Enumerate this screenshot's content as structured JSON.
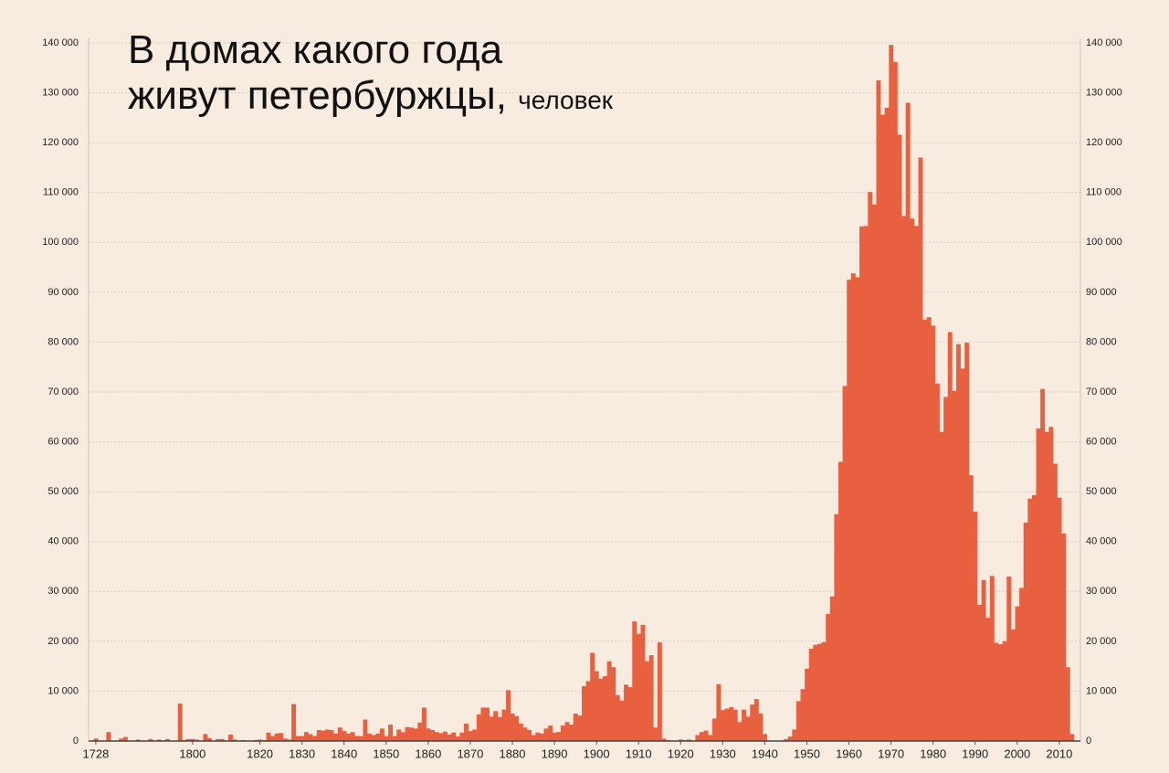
{
  "chart_data": {
    "type": "bar",
    "title": [
      "В домах какого года",
      "живут петербуржцы,"
    ],
    "subtitle": "человек",
    "color": "#e8603f",
    "grid": true,
    "categories": [
      null,
      "1728",
      null,
      null,
      null,
      null,
      null,
      null,
      null,
      null,
      null,
      null,
      null,
      null,
      null,
      null,
      null,
      null,
      null,
      null,
      null,
      null,
      null,
      null,
      "1800",
      null,
      null,
      null,
      null,
      null,
      null,
      null,
      null,
      null,
      null,
      null,
      null,
      null,
      null,
      null,
      "1820",
      null,
      null,
      null,
      null,
      null,
      null,
      null,
      null,
      null,
      "1830",
      null,
      null,
      null,
      null,
      null,
      null,
      null,
      null,
      null,
      "1840",
      null,
      null,
      null,
      null,
      null,
      null,
      null,
      null,
      null,
      "1850",
      null,
      null,
      null,
      null,
      null,
      null,
      null,
      null,
      null,
      "1860",
      null,
      null,
      null,
      null,
      null,
      null,
      null,
      null,
      null,
      "1870",
      null,
      null,
      null,
      null,
      null,
      null,
      null,
      null,
      null,
      "1880",
      null,
      null,
      null,
      null,
      null,
      null,
      null,
      null,
      null,
      "1890",
      null,
      null,
      null,
      null,
      null,
      null,
      null,
      null,
      null,
      "1900",
      null,
      null,
      null,
      null,
      null,
      null,
      null,
      null,
      null,
      "1910",
      null,
      null,
      null,
      null,
      null,
      null,
      null,
      null,
      null,
      "1920",
      null,
      null,
      null,
      null,
      null,
      null,
      null,
      null,
      null,
      "1930",
      null,
      null,
      null,
      null,
      null,
      null,
      null,
      null,
      null,
      "1940",
      null,
      null,
      null,
      null,
      null,
      null,
      null,
      null,
      null,
      "1950",
      null,
      null,
      null,
      null,
      null,
      null,
      null,
      null,
      null,
      "1960",
      null,
      null,
      null,
      null,
      null,
      null,
      null,
      null,
      null,
      "1970",
      null,
      null,
      null,
      null,
      null,
      null,
      null,
      null,
      null,
      "1980",
      null,
      null,
      null,
      null,
      null,
      null,
      null,
      null,
      null,
      "1990",
      null,
      null,
      null,
      null,
      null,
      null,
      null,
      null,
      null,
      "2000",
      null,
      null,
      null,
      null,
      null,
      null,
      null,
      null,
      null,
      "2010",
      null,
      null,
      null
    ],
    "values": [
      0,
      500,
      0,
      0,
      1800,
      0,
      0,
      500,
      800,
      0,
      0,
      300,
      0,
      0,
      400,
      0,
      300,
      0,
      400,
      0,
      0,
      7500,
      200,
      400,
      400,
      300,
      0,
      1400,
      600,
      0,
      400,
      400,
      0,
      1300,
      300,
      0,
      200,
      0,
      0,
      200,
      300,
      200,
      1700,
      1000,
      1500,
      1600,
      500,
      300,
      7400,
      1000,
      1000,
      1800,
      1400,
      1000,
      2200,
      2100,
      2300,
      2200,
      1500,
      2700,
      2000,
      1500,
      1800,
      1000,
      1000,
      4300,
      1500,
      1200,
      1500,
      2500,
      1000,
      3300,
      1000,
      2300,
      1800,
      2800,
      2700,
      2500,
      3700,
      6700,
      2500,
      2200,
      1800,
      1600,
      1900,
      1300,
      1700,
      900,
      1700,
      3500,
      2000,
      2300,
      5300,
      6700,
      6700,
      4900,
      6000,
      4800,
      6300,
      10200,
      5500,
      5000,
      3500,
      2700,
      2200,
      1200,
      1700,
      1500,
      2500,
      3100,
      1700,
      1800,
      3100,
      3800,
      3300,
      5500,
      5100,
      11000,
      12000,
      17700,
      14000,
      12500,
      13000,
      16000,
      14800,
      9200,
      8100,
      11300,
      10800,
      24000,
      21500,
      23300,
      16000,
      17200,
      2700,
      19800,
      500,
      200,
      100,
      0,
      300,
      200,
      300,
      100,
      1200,
      1800,
      2100,
      1200,
      4500,
      11400,
      6200,
      6500,
      6800,
      6300,
      3800,
      6300,
      4900,
      7300,
      8400,
      5500,
      1400,
      0,
      0,
      0,
      0,
      400,
      900,
      2300,
      8000,
      10400,
      14500,
      18500,
      19300,
      19500,
      19800,
      25500,
      29000,
      45500,
      56000,
      71200,
      92500,
      93800,
      93000,
      103200,
      103300,
      110100,
      107600,
      132500,
      125600,
      127000,
      139600,
      136200,
      121600,
      105300,
      128000,
      104800,
      103300,
      117000,
      84500,
      85000,
      83300,
      71700,
      62000,
      69000,
      82000,
      70200,
      79600,
      74700,
      79900,
      53300,
      46000,
      27300,
      32300,
      24700,
      33100,
      19700,
      19400,
      20000,
      33000,
      22400,
      27000,
      30700,
      43800,
      48600,
      49300,
      62700,
      70600,
      62000,
      63000,
      55600,
      48800,
      41600,
      14800,
      1400
    ],
    "ylim": [
      0,
      140000
    ],
    "yticks": [
      0,
      {
        "value": 10000,
        "label": "10 000"
      },
      {
        "value": 20000,
        "label": "20 000"
      },
      {
        "value": 30000,
        "label": "30 000"
      },
      {
        "value": 40000,
        "label": "40 000"
      },
      {
        "value": 50000,
        "label": "50 000"
      },
      {
        "value": 60000,
        "label": "60 000"
      },
      {
        "value": 70000,
        "label": "70 000"
      },
      {
        "value": 80000,
        "label": "80 000"
      },
      {
        "value": 90000,
        "label": "90 000"
      },
      {
        "value": 100000,
        "label": "100 000"
      },
      {
        "value": 110000,
        "label": "110 000"
      },
      {
        "value": 120000,
        "label": "120 000"
      },
      {
        "value": 130000,
        "label": "130 000"
      },
      {
        "value": 140000,
        "label": "140 000"
      }
    ]
  }
}
